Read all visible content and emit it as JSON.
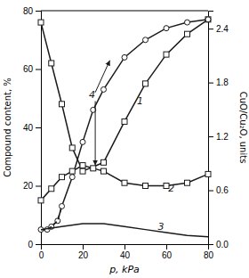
{
  "chart_data": {
    "type": "line",
    "xlabel": "p, kPa",
    "ylabel": "Compound content, %",
    "y2label": "CuO/Cu₂O, units",
    "xlim": [
      0,
      80
    ],
    "ylim": [
      0,
      80
    ],
    "xticks": [
      0,
      20,
      40,
      60,
      80
    ],
    "yticks": [
      0,
      20,
      40,
      60,
      80
    ],
    "y2lim": [
      0,
      2.6
    ],
    "y2ticks": [
      {
        "value": 0,
        "label": "0.0"
      },
      0.6,
      1.2,
      1.8,
      2.4
    ],
    "grid": false,
    "color": "#1a1a1a",
    "series": [
      {
        "x": [
          0,
          5,
          10,
          15,
          20,
          30,
          40,
          50,
          60,
          70,
          80
        ],
        "values": [
          76,
          62,
          48,
          33,
          25,
          28,
          42,
          55,
          65,
          72,
          77
        ],
        "marker": "square",
        "line_style": "solid"
      },
      {
        "x": [
          0,
          3,
          5,
          8,
          10,
          15,
          20,
          25,
          30,
          40,
          50,
          60,
          70,
          80
        ],
        "values": [
          5,
          5,
          6,
          8,
          13,
          23,
          35,
          46,
          53,
          64,
          70,
          74,
          76,
          77
        ],
        "marker": "circle",
        "line_style": "solid"
      },
      {
        "x": [
          0,
          3,
          5,
          8,
          10
        ],
        "values": [
          5,
          5,
          6,
          8,
          13
        ],
        "line_style": "dashed"
      },
      {
        "x": [
          0,
          5,
          10,
          15,
          20,
          25,
          30,
          40,
          50,
          60,
          70,
          80
        ],
        "values": [
          15,
          19,
          23,
          25,
          27,
          26,
          25,
          21,
          20,
          20,
          21,
          24
        ],
        "marker": "square",
        "line_style": "solid"
      },
      {
        "x": [
          0,
          5,
          10,
          20,
          30,
          40,
          50,
          60,
          70,
          80
        ],
        "values": [
          5,
          5.5,
          6,
          7,
          7,
          6,
          5,
          4,
          3,
          2.5
        ],
        "line_style": "solid"
      }
    ],
    "annotations": [
      {
        "text": "1",
        "x": 46,
        "y": 48
      },
      {
        "text": "2",
        "x": 61,
        "y": 18
      },
      {
        "text": "3",
        "x": 56,
        "y": 5
      },
      {
        "text": "4",
        "x": 23,
        "y": 50
      }
    ],
    "arrows": [
      {
        "from": [
          26,
          52
        ],
        "to": [
          33,
          63
        ]
      },
      {
        "from": [
          26,
          49
        ],
        "to": [
          26,
          27
        ]
      }
    ]
  }
}
